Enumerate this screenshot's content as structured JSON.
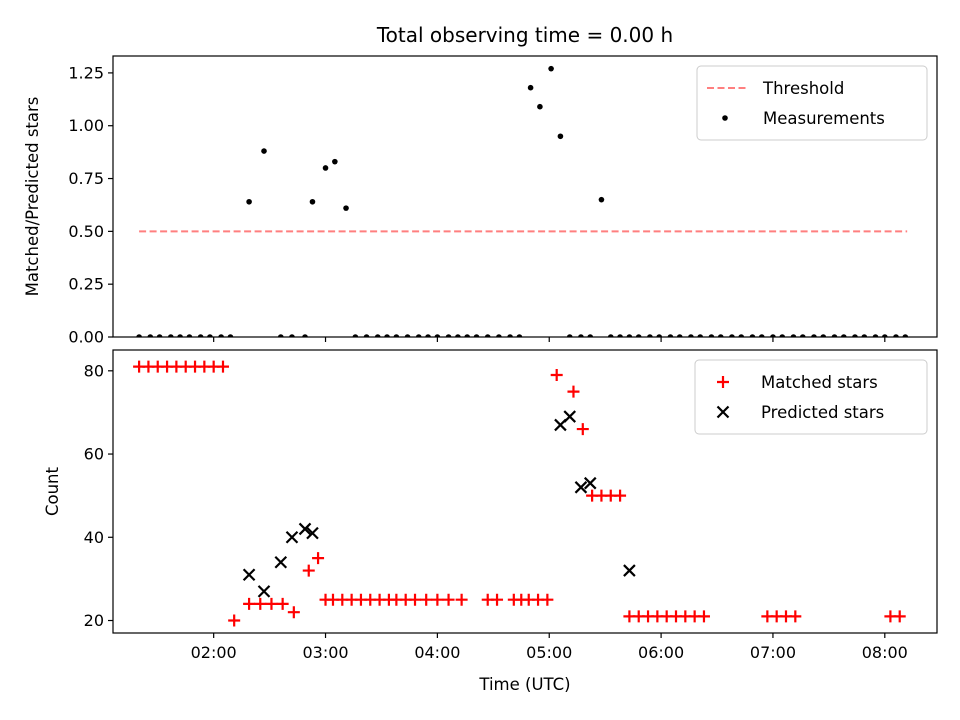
{
  "figure": {
    "title": "Total observing time = 0.00 h"
  },
  "chart_data": [
    {
      "type": "scatter",
      "title": "Total observing time = 0.00 h",
      "xlabel": "",
      "ylabel": "Matched/Predicted stars",
      "xlim": [
        "01:06",
        "08:28"
      ],
      "ylim": [
        0,
        1.33
      ],
      "yticks": [
        "0.00",
        "0.25",
        "0.50",
        "0.75",
        "1.00",
        "1.25"
      ],
      "legend_position": "top-right",
      "threshold": {
        "name": "Threshold",
        "value": 0.5,
        "x_start": "01:20",
        "x_end": "08:12",
        "color": "#ff7f7f",
        "style": "dashed"
      },
      "series": [
        {
          "name": "Measurements",
          "color": "#000000",
          "marker": "dot",
          "x": [
            "01:20",
            "01:26",
            "01:31",
            "01:37",
            "01:42",
            "01:47",
            "01:53",
            "01:58",
            "02:04",
            "02:09",
            "02:19",
            "02:27",
            "02:36",
            "02:42",
            "02:49",
            "02:53",
            "03:00",
            "03:05",
            "03:11",
            "03:16",
            "03:22",
            "03:28",
            "03:33",
            "03:38",
            "03:44",
            "03:50",
            "03:55",
            "04:00",
            "04:06",
            "04:11",
            "04:16",
            "04:21",
            "04:27",
            "04:33",
            "04:39",
            "04:44",
            "04:50",
            "04:55",
            "05:01",
            "05:06",
            "05:11",
            "05:17",
            "05:22",
            "05:28",
            "05:33",
            "05:38",
            "05:43",
            "05:48",
            "05:54",
            "05:59",
            "06:05",
            "06:10",
            "06:16",
            "06:21",
            "06:27",
            "06:32",
            "06:38",
            "06:43",
            "06:49",
            "06:54",
            "07:00",
            "07:05",
            "07:11",
            "07:16",
            "07:22",
            "07:27",
            "07:33",
            "07:38",
            "07:44",
            "07:49",
            "07:55",
            "08:00",
            "08:06",
            "08:11"
          ],
          "y": [
            0,
            0,
            0,
            0,
            0,
            0,
            0,
            0,
            0,
            0,
            0.64,
            0.88,
            0,
            0,
            0,
            0.64,
            0.8,
            0.83,
            0.61,
            0,
            0,
            0,
            0,
            0,
            0,
            0,
            0,
            0,
            0,
            0,
            0,
            0,
            0,
            0,
            0,
            0,
            1.18,
            1.09,
            1.27,
            0.95,
            0,
            0,
            0,
            0.65,
            0,
            0,
            0,
            0,
            0,
            0,
            0,
            0,
            0,
            0,
            0,
            0,
            0,
            0,
            0,
            0,
            0,
            0,
            0,
            0,
            0,
            0,
            0,
            0,
            0,
            0,
            0,
            0,
            0,
            0
          ]
        }
      ]
    },
    {
      "type": "scatter",
      "title": "",
      "xlabel": "Time (UTC)",
      "ylabel": "Count",
      "xlim": [
        "01:06",
        "08:28"
      ],
      "ylim": [
        17,
        85
      ],
      "yticks": [
        "20",
        "40",
        "60",
        "80"
      ],
      "xticks": [
        "02:00",
        "03:00",
        "04:00",
        "05:00",
        "06:00",
        "07:00",
        "08:00"
      ],
      "legend_position": "top-right",
      "series": [
        {
          "name": "Matched stars",
          "color": "#ff0000",
          "marker": "plus",
          "x": [
            "01:20",
            "01:25",
            "01:30",
            "01:35",
            "01:40",
            "01:45",
            "01:50",
            "01:55",
            "02:00",
            "02:05",
            "02:11",
            "02:19",
            "02:25",
            "02:31",
            "02:37",
            "02:43",
            "02:51",
            "02:56",
            "03:00",
            "03:04",
            "03:09",
            "03:14",
            "03:19",
            "03:24",
            "03:29",
            "03:34",
            "03:38",
            "03:43",
            "03:48",
            "03:54",
            "04:00",
            "04:06",
            "04:13",
            "04:27",
            "04:32",
            "04:41",
            "04:45",
            "04:49",
            "04:54",
            "04:59",
            "05:04",
            "05:13",
            "05:18",
            "05:23",
            "05:28",
            "05:33",
            "05:38",
            "05:43",
            "05:48",
            "05:53",
            "05:58",
            "06:03",
            "06:08",
            "06:13",
            "06:18",
            "06:23",
            "06:57",
            "07:02",
            "07:07",
            "07:12",
            "08:03",
            "08:08"
          ],
          "y": [
            81,
            81,
            81,
            81,
            81,
            81,
            81,
            81,
            81,
            81,
            20,
            24,
            24,
            24,
            24,
            22,
            32,
            35,
            25,
            25,
            25,
            25,
            25,
            25,
            25,
            25,
            25,
            25,
            25,
            25,
            25,
            25,
            25,
            25,
            25,
            25,
            25,
            25,
            25,
            25,
            79,
            75,
            66,
            50,
            50,
            50,
            50,
            21,
            21,
            21,
            21,
            21,
            21,
            21,
            21,
            21,
            21,
            21,
            21,
            21,
            21,
            21
          ]
        },
        {
          "name": "Predicted stars",
          "color": "#000000",
          "marker": "x",
          "x": [
            "02:19",
            "02:27",
            "02:36",
            "02:42",
            "02:49",
            "02:53",
            "05:06",
            "05:11",
            "05:17",
            "05:22",
            "05:43"
          ],
          "y": [
            31,
            27,
            34,
            40,
            42,
            41,
            67,
            69,
            52,
            53,
            32
          ]
        }
      ]
    }
  ]
}
